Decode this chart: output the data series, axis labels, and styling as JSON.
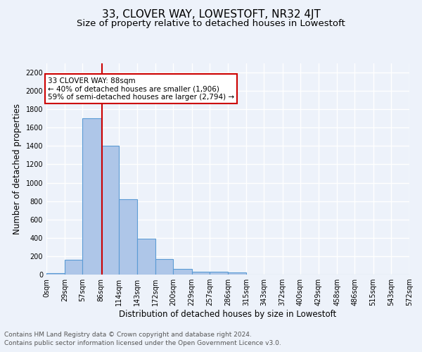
{
  "title": "33, CLOVER WAY, LOWESTOFT, NR32 4JT",
  "subtitle": "Size of property relative to detached houses in Lowestoft",
  "xlabel": "Distribution of detached houses by size in Lowestoft",
  "ylabel": "Number of detached properties",
  "bar_values": [
    15,
    160,
    1700,
    1400,
    820,
    390,
    165,
    65,
    30,
    30,
    25,
    0,
    0,
    0,
    0,
    0,
    0,
    0,
    0,
    0
  ],
  "bin_edges": [
    0,
    29,
    57,
    86,
    114,
    143,
    172,
    200,
    229,
    257,
    286,
    315,
    343,
    372,
    400,
    429,
    458,
    486,
    515,
    543,
    572
  ],
  "tick_labels": [
    "0sqm",
    "29sqm",
    "57sqm",
    "86sqm",
    "114sqm",
    "143sqm",
    "172sqm",
    "200sqm",
    "229sqm",
    "257sqm",
    "286sqm",
    "315sqm",
    "343sqm",
    "372sqm",
    "400sqm",
    "429sqm",
    "458sqm",
    "486sqm",
    "515sqm",
    "543sqm",
    "572sqm"
  ],
  "property_size": 88,
  "bar_color": "#aec6e8",
  "bar_edge_color": "#5b9bd5",
  "line_color": "#cc0000",
  "ylim": [
    0,
    2300
  ],
  "yticks": [
    0,
    200,
    400,
    600,
    800,
    1000,
    1200,
    1400,
    1600,
    1800,
    2000,
    2200
  ],
  "annotation_title": "33 CLOVER WAY: 88sqm",
  "annotation_line1": "← 40% of detached houses are smaller (1,906)",
  "annotation_line2": "59% of semi-detached houses are larger (2,794) →",
  "annotation_box_color": "#ffffff",
  "annotation_border_color": "#cc0000",
  "footer_line1": "Contains HM Land Registry data © Crown copyright and database right 2024.",
  "footer_line2": "Contains public sector information licensed under the Open Government Licence v3.0.",
  "background_color": "#edf2fa",
  "grid_color": "#ffffff",
  "title_fontsize": 11,
  "subtitle_fontsize": 9.5,
  "axis_label_fontsize": 8.5,
  "tick_fontsize": 7,
  "footer_fontsize": 6.5,
  "annotation_fontsize": 7.5
}
